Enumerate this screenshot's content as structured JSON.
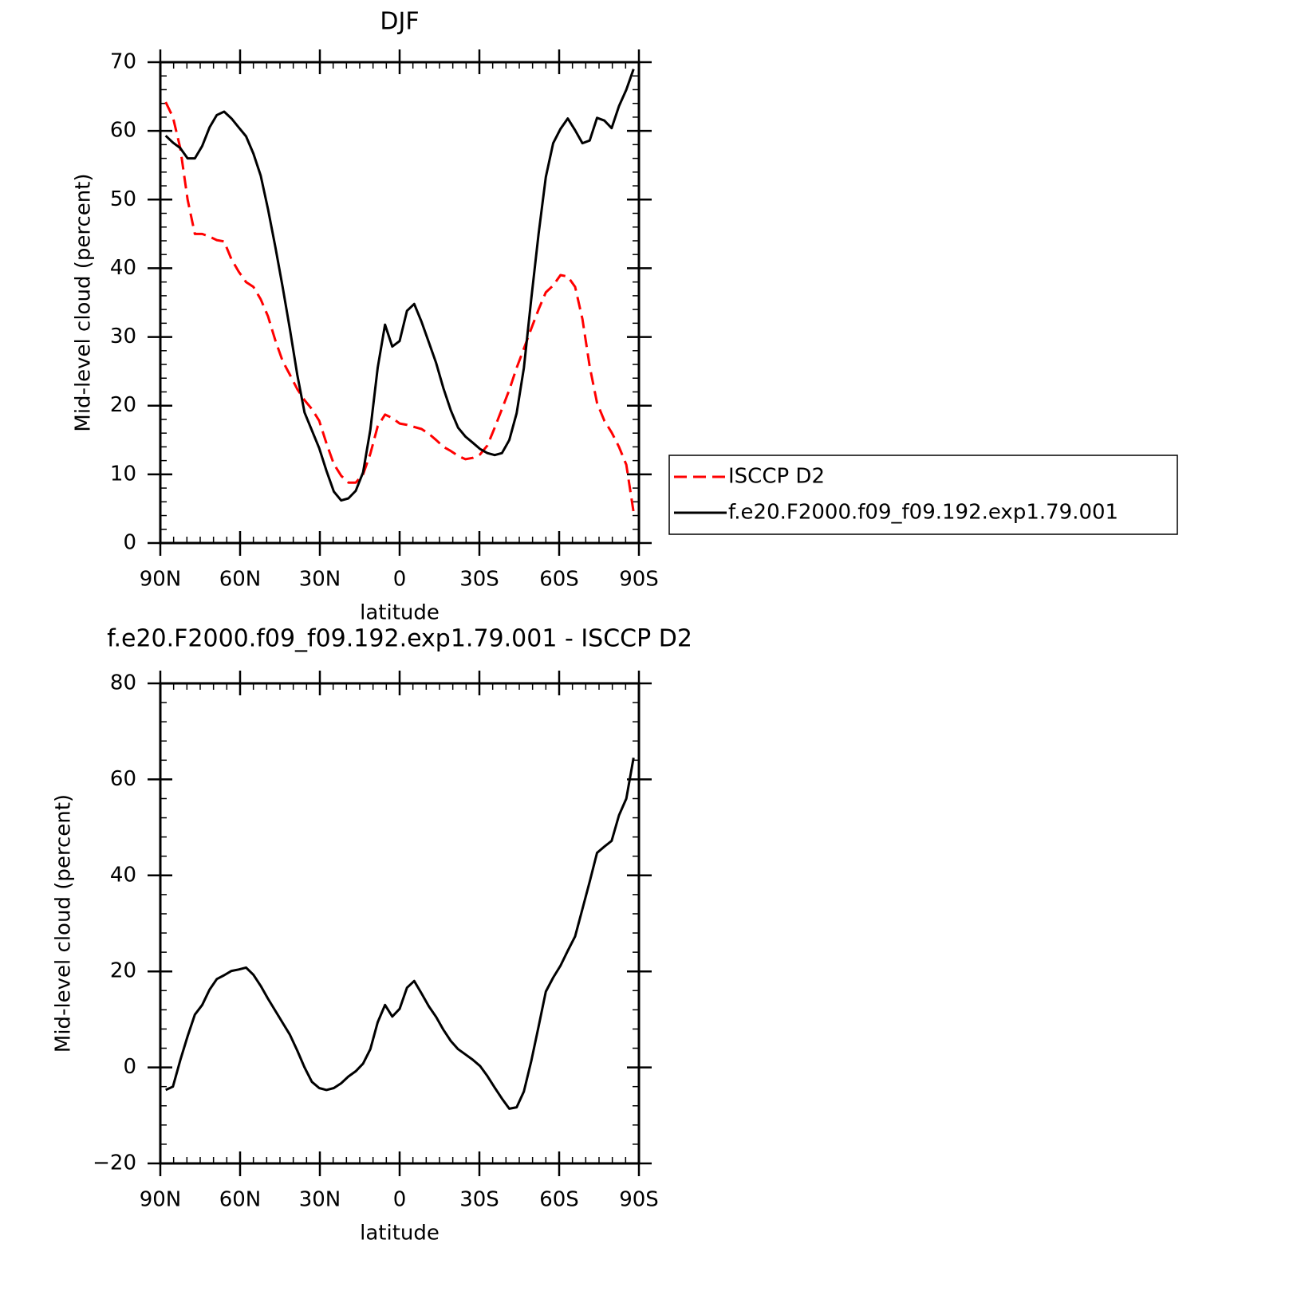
{
  "chart_data": [
    {
      "type": "line",
      "title": "DJF",
      "xlabel": "latitude",
      "ylabel": "Mid-level cloud (percent)",
      "x": [
        88,
        85.25,
        82.5,
        79.75,
        77,
        74.25,
        71.5,
        68.75,
        66,
        63.25,
        60.5,
        57.75,
        55,
        52.25,
        49.5,
        46.75,
        44,
        41.25,
        38.5,
        35.75,
        33,
        30.25,
        27.5,
        24.75,
        22,
        19.25,
        16.5,
        13.75,
        11,
        8.25,
        5.5,
        2.75,
        0,
        -2.75,
        -5.5,
        -8.25,
        -11,
        -13.75,
        -16.5,
        -19.25,
        -22,
        -24.75,
        -27.5,
        -30.25,
        -33,
        -35.75,
        -38.5,
        -41.25,
        -44,
        -46.75,
        -49.5,
        -52.25,
        -55,
        -57.75,
        -60.5,
        -63.25,
        -66,
        -68.75,
        -71.5,
        -74.25,
        -77,
        -79.75,
        -82.5,
        -85.25,
        -88
      ],
      "xlim": [
        90,
        -90
      ],
      "xticks": [
        {
          "value": 90,
          "label": "90N"
        },
        {
          "value": 60,
          "label": "60N"
        },
        {
          "value": 30,
          "label": "30N"
        },
        0,
        {
          "value": -30,
          "label": "30S"
        },
        {
          "value": -60,
          "label": "60S"
        },
        {
          "value": -90,
          "label": "90S"
        }
      ],
      "ylim": [
        0,
        70
      ],
      "yticks": [
        0,
        10,
        20,
        30,
        40,
        50,
        60,
        70
      ],
      "legend": "right",
      "series": [
        {
          "name": "ISCCP D2",
          "color": "#ff0000",
          "dashed": true,
          "values": [
            64.2,
            62,
            57.5,
            50,
            45,
            45,
            44.6,
            44.1,
            43.9,
            41.3,
            39.5,
            38,
            37.3,
            35.5,
            33,
            29.5,
            26.5,
            24.5,
            22.4,
            20.8,
            19.5,
            17.8,
            14.5,
            11.5,
            9.8,
            8.8,
            8.8,
            10,
            13,
            17,
            18.7,
            18.2,
            17.4,
            17.2,
            16.9,
            16.6,
            15.9,
            15,
            14,
            13.4,
            12.7,
            12.2,
            12.4,
            12.9,
            14.2,
            16.8,
            19.5,
            22.3,
            25.5,
            28.3,
            31.2,
            34,
            36.5,
            37.5,
            39,
            38.8,
            37.3,
            32.6,
            25.7,
            20.4,
            17.8,
            16.1,
            14,
            11.4,
            4.5
          ]
        },
        {
          "name": "f.e20.F2000.f09_f09.192.exp1.79.001",
          "color": "#000000",
          "dashed": false,
          "values": [
            59.3,
            58.3,
            57.5,
            56,
            56,
            57.8,
            60.5,
            62.3,
            62.8,
            61.8,
            60.5,
            59.2,
            56.7,
            53.5,
            48.6,
            43.1,
            37.3,
            31.1,
            24.5,
            19,
            16.4,
            13.8,
            10.5,
            7.5,
            6.2,
            6.5,
            7.6,
            10.3,
            16.5,
            25.5,
            31.8,
            28.6,
            29.4,
            33.8,
            34.8,
            32.2,
            29.2,
            26.2,
            22.5,
            19.3,
            16.8,
            15.5,
            14.6,
            13.7,
            13.1,
            12.8,
            13.1,
            15,
            18.9,
            25.5,
            35.5,
            45,
            53.3,
            58.2,
            60.3,
            61.8,
            60.1,
            58.2,
            58.6,
            61.9,
            61.5,
            60.4,
            63.6,
            66,
            69
          ]
        }
      ]
    },
    {
      "type": "line",
      "title": "f.e20.F2000.f09_f09.192.exp1.79.001 - ISCCP D2",
      "xlabel": "latitude",
      "ylabel": "Mid-level cloud (percent)",
      "x": [
        88,
        85.25,
        82.5,
        79.75,
        77,
        74.25,
        71.5,
        68.75,
        66,
        63.25,
        60.5,
        57.75,
        55,
        52.25,
        49.5,
        46.75,
        44,
        41.25,
        38.5,
        35.75,
        33,
        30.25,
        27.5,
        24.75,
        22,
        19.25,
        16.5,
        13.75,
        11,
        8.25,
        5.5,
        2.75,
        0,
        -2.75,
        -5.5,
        -8.25,
        -11,
        -13.75,
        -16.5,
        -19.25,
        -22,
        -24.75,
        -27.5,
        -30.25,
        -33,
        -35.75,
        -38.5,
        -41.25,
        -44,
        -46.75,
        -49.5,
        -52.25,
        -55,
        -57.75,
        -60.5,
        -63.25,
        -66,
        -68.75,
        -71.5,
        -74.25,
        -77,
        -79.75,
        -82.5,
        -85.25,
        -88
      ],
      "xlim": [
        90,
        -90
      ],
      "xticks": [
        {
          "value": 90,
          "label": "90N"
        },
        {
          "value": 60,
          "label": "60N"
        },
        {
          "value": 30,
          "label": "30N"
        },
        0,
        {
          "value": -30,
          "label": "30S"
        },
        {
          "value": -60,
          "label": "60S"
        },
        {
          "value": -90,
          "label": "90S"
        }
      ],
      "ylim": [
        -20,
        80
      ],
      "yticks": [
        {
          "value": -20,
          "label": "−20"
        },
        0,
        20,
        40,
        60,
        80
      ],
      "color": "#000000",
      "values": [
        -4.7,
        -4,
        1.5,
        6.5,
        11,
        13,
        16.2,
        18.4,
        19.2,
        20.1,
        20.4,
        20.8,
        19.3,
        17,
        14.3,
        11.8,
        9.3,
        6.8,
        3.5,
        0,
        -3,
        -4.3,
        -4.7,
        -4.3,
        -3.3,
        -1.9,
        -0.8,
        0.8,
        3.8,
        9.4,
        13,
        10.6,
        12.2,
        16.6,
        18,
        15.4,
        12.7,
        10.5,
        7.8,
        5.5,
        3.8,
        2.7,
        1.6,
        0.3,
        -1.8,
        -4.2,
        -6.5,
        -8.6,
        -8.3,
        -5,
        1.3,
        8.5,
        15.8,
        18.7,
        21.2,
        24.3,
        27.3,
        33,
        38.7,
        44.7,
        46,
        47.2,
        52.5,
        56,
        64.5
      ]
    }
  ]
}
